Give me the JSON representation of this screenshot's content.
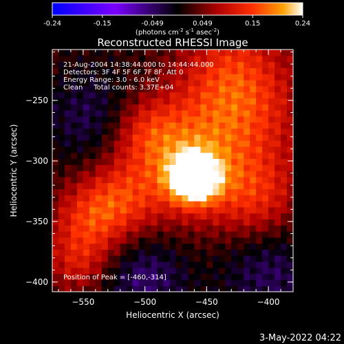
{
  "colorbar": {
    "ticks": [
      "-0.24",
      "-0.15",
      "-0.049",
      "0.049",
      "0.15",
      "0.24"
    ],
    "unit_label": "(photons cm",
    "unit_exp1": "-2",
    "unit_mid": " s",
    "unit_exp2": "-1",
    "unit_tail": " asec",
    "unit_exp3": "-2",
    "unit_close": ")"
  },
  "chart_data": {
    "type": "heatmap",
    "title": "Reconstructed RHESSI Image",
    "xlabel": "Heliocentric X (arcsec)",
    "ylabel": "Heliocentric Y (arcsec)",
    "xlim": [
      -575,
      -380
    ],
    "ylim": [
      -408,
      -208
    ],
    "x_ticks": [
      -550,
      -500,
      -450,
      -400
    ],
    "y_ticks": [
      -250,
      -300,
      -350,
      -400
    ],
    "color_range": [
      -0.24,
      0.24
    ],
    "peak": [
      -460,
      -314
    ],
    "blobs": [
      {
        "x": -460,
        "y": -314,
        "amp": 0.24,
        "sigma": 14
      },
      {
        "x": -470,
        "y": -300,
        "amp": 0.12,
        "sigma": 35
      },
      {
        "x": -420,
        "y": -260,
        "amp": 0.1,
        "sigma": 35
      },
      {
        "x": -410,
        "y": -330,
        "amp": 0.09,
        "sigma": 25
      },
      {
        "x": -545,
        "y": -350,
        "amp": 0.1,
        "sigma": 22
      },
      {
        "x": -520,
        "y": -330,
        "amp": 0.08,
        "sigma": 22
      },
      {
        "x": -500,
        "y": -275,
        "amp": 0.07,
        "sigma": 20
      },
      {
        "x": -555,
        "y": -385,
        "amp": 0.07,
        "sigma": 18
      },
      {
        "x": -430,
        "y": -220,
        "amp": 0.07,
        "sigma": 28
      },
      {
        "x": -540,
        "y": -265,
        "amp": -0.06,
        "sigma": 28
      },
      {
        "x": -500,
        "y": -395,
        "amp": -0.07,
        "sigma": 25
      },
      {
        "x": -400,
        "y": -390,
        "amp": -0.06,
        "sigma": 28
      }
    ],
    "annotations": [
      "21-Aug-2004 14:38:44.000 to 14:44:44.000",
      "Detectors: 3F 4F 5F 6F 7F 8F, Att 0",
      "Energy Range: 3.0 - 6.0 keV",
      "Clean     Total counts: 3.37E+04"
    ],
    "peak_label": "Position of Peak = [-460,-314]"
  },
  "footer": {
    "date": "3-May-2022 04:22"
  }
}
